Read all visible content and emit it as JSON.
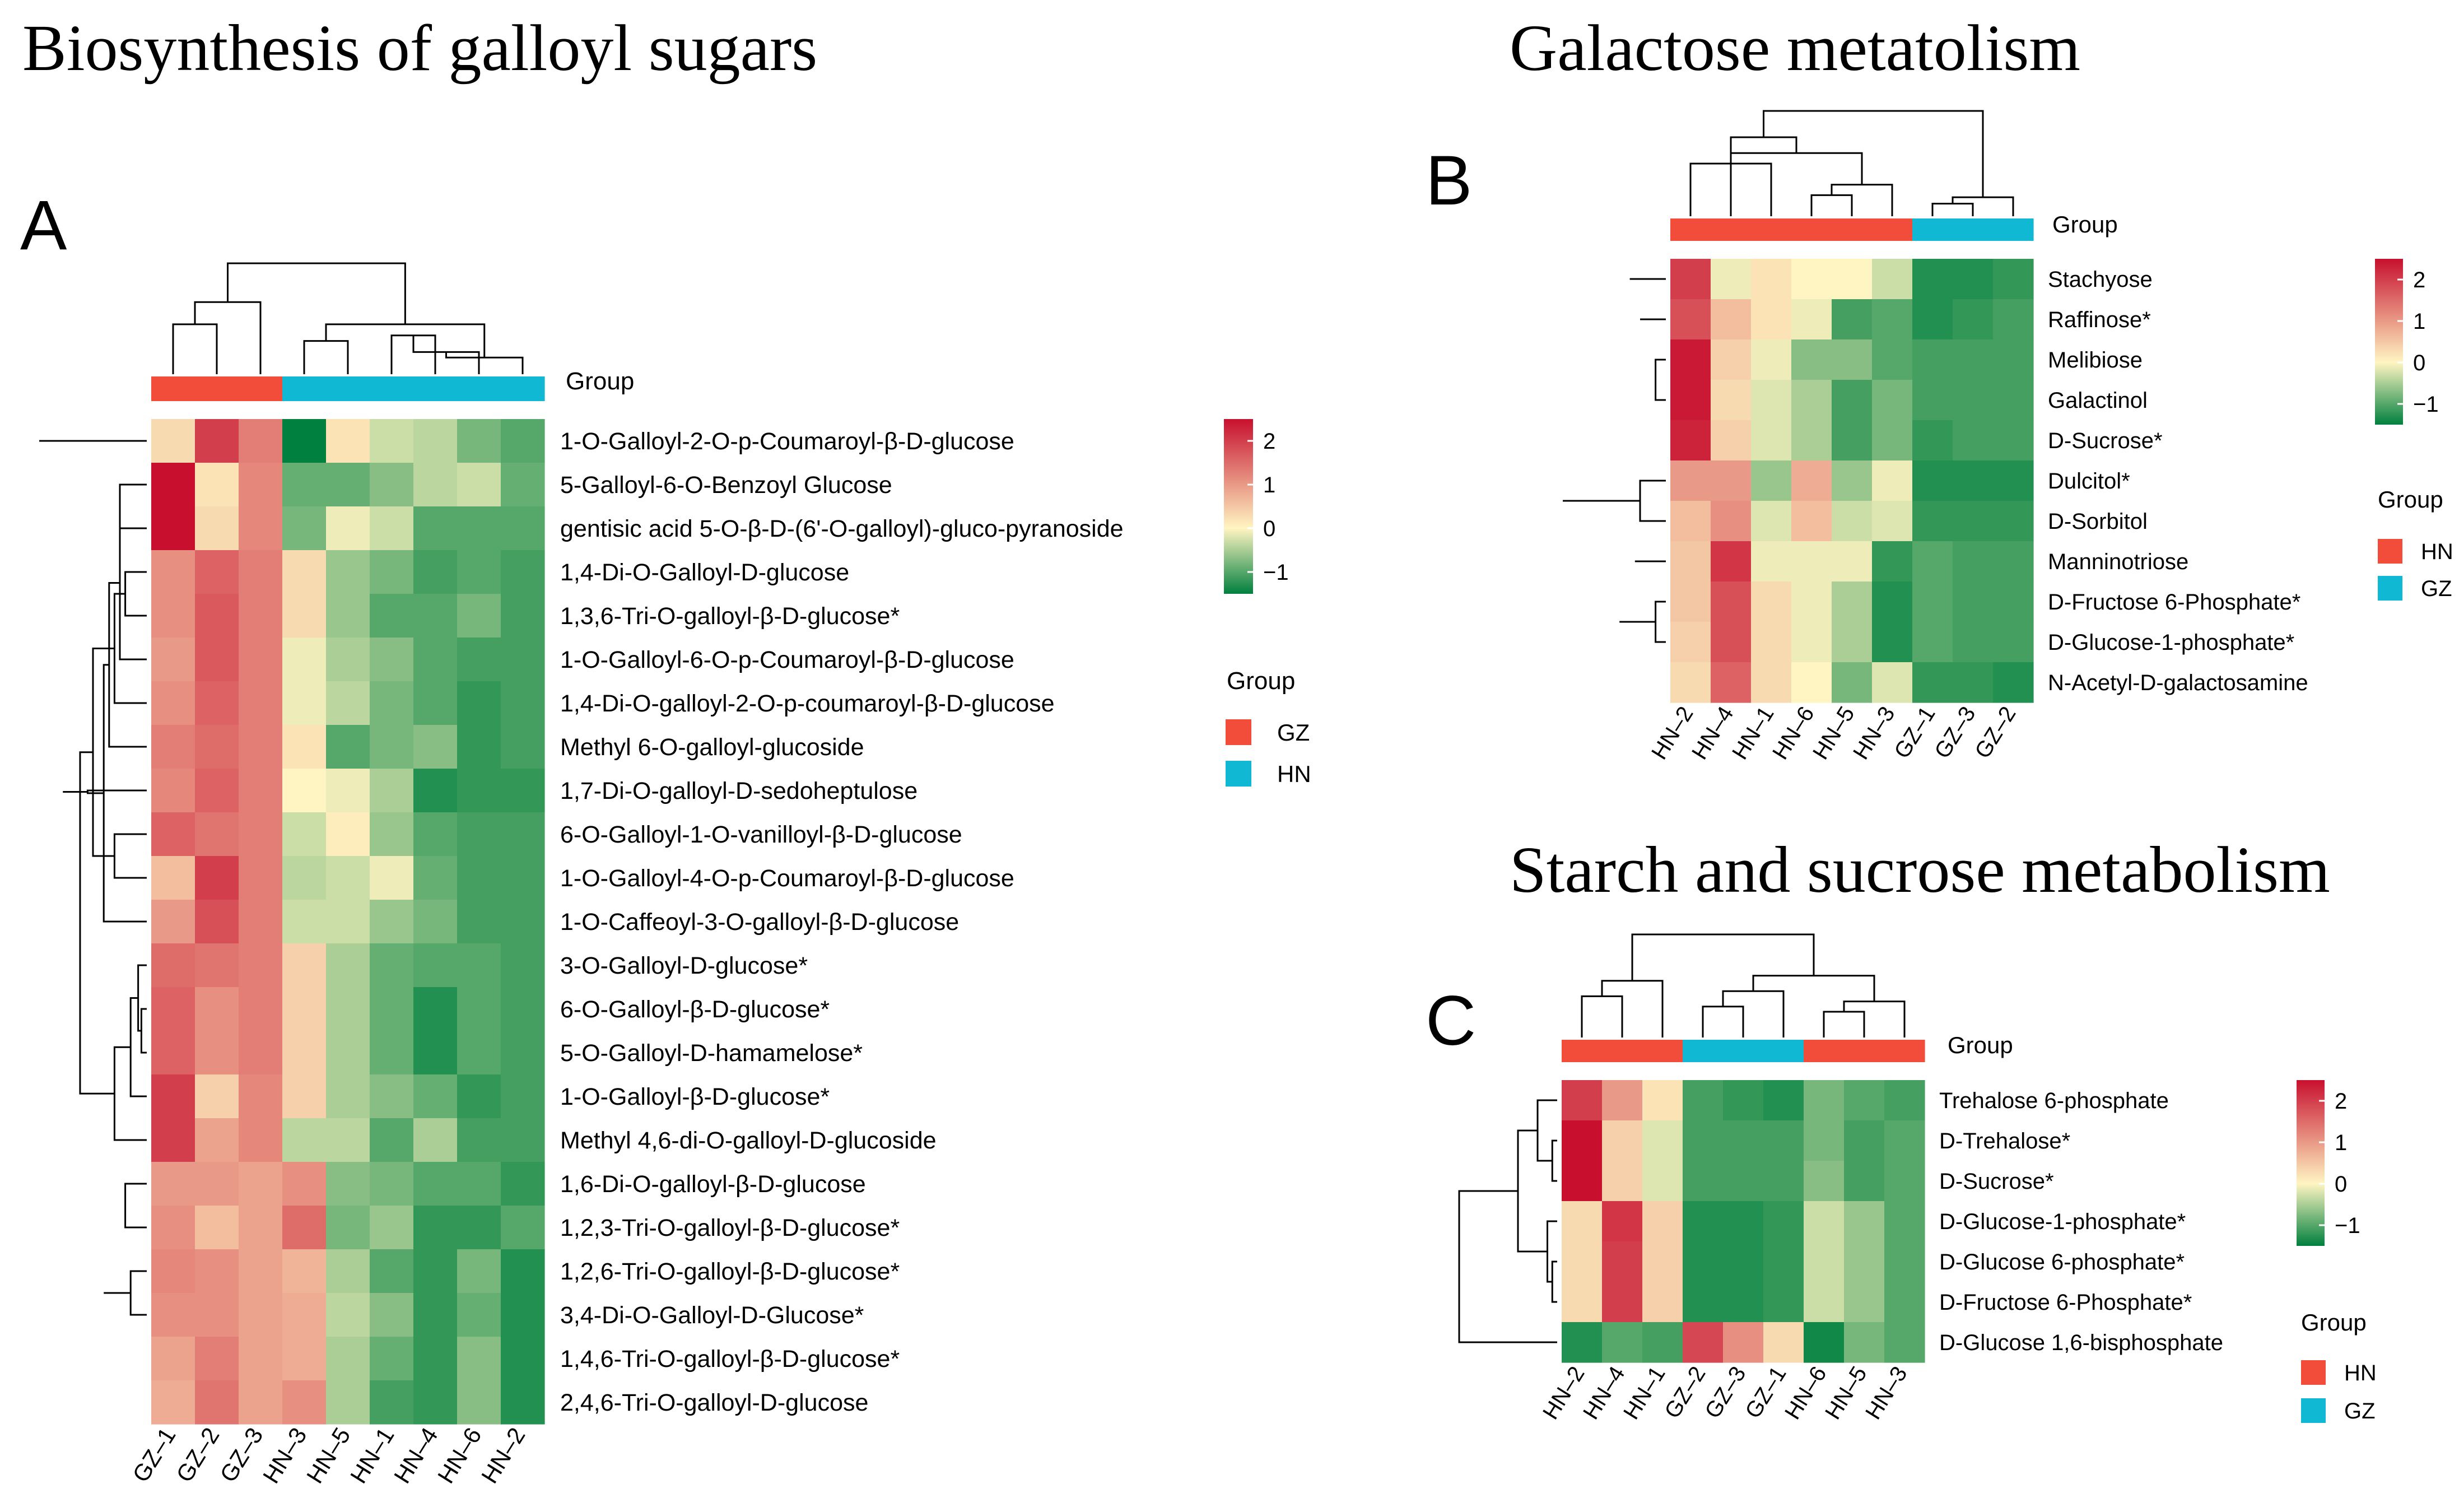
{
  "colors": {
    "scale_low": "#00803e",
    "scale_mid": "#fff5c2",
    "scale_high": "#c8102e",
    "group_red": "#f24d3a",
    "group_cyan": "#11b8d4",
    "dendro": "#000000"
  },
  "chart_data": [
    {
      "id": "A",
      "type": "heatmap",
      "panel_label": "A",
      "title": "Biosynthesis of galloyl sugars",
      "group_label": "Group",
      "columns": [
        "GZ–1",
        "GZ–2",
        "GZ–3",
        "HN–3",
        "HN–5",
        "HN–1",
        "HN–4",
        "HN–6",
        "HN–2"
      ],
      "column_groups": [
        "GZ",
        "GZ",
        "GZ",
        "HN",
        "HN",
        "HN",
        "HN",
        "HN",
        "HN"
      ],
      "rows": [
        "1-O-Galloyl-2-O-p-Coumaroyl-β-D-glucose",
        "5-Galloyl-6-O-Benzoyl Glucose",
        "gentisic acid 5-O-β-D-(6'-O-galloyl)-gluco-pyranoside",
        "1,4-Di-O-Galloyl-D-glucose",
        "1,3,6-Tri-O-galloyl-β-D-glucose*",
        "1-O-Galloyl-6-O-p-Coumaroyl-β-D-glucose",
        "1,4-Di-O-galloyl-2-O-p-coumaroyl-β-D-glucose",
        "Methyl 6-O-galloyl-glucoside",
        "1,7-Di-O-galloyl-D-sedoheptulose",
        "6-O-Galloyl-1-O-vanilloyl-β-D-glucose",
        "1-O-Galloyl-4-O-p-Coumaroyl-β-D-glucose",
        "1-O-Caffeoyl-3-O-galloyl-β-D-glucose",
        "3-O-Galloyl-D-glucose*",
        "6-O-Galloyl-β-D-glucose*",
        "5-O-Galloyl-D-hamamelose*",
        "1-O-Galloyl-β-D-glucose*",
        "Methyl 4,6-di-O-galloyl-D-glucoside",
        "1,6-Di-O-galloyl-β-D-glucose",
        "1,2,3-Tri-O-galloyl-β-D-glucose*",
        "1,2,6-Tri-O-galloyl-β-D-glucose*",
        "3,4-Di-O-Galloyl-D-Glucose*",
        "1,4,6-Tri-O-galloyl-β-D-glucose*",
        "2,4,6-Tri-O-galloyl-D-glucose"
      ],
      "values": [
        [
          0.3,
          2.0,
          1.3,
          -1.5,
          0.2,
          -0.3,
          -0.4,
          -0.8,
          -1.0
        ],
        [
          2.6,
          0.2,
          1.2,
          -0.9,
          -0.9,
          -0.7,
          -0.4,
          -0.3,
          -0.9
        ],
        [
          2.6,
          0.3,
          1.2,
          -0.8,
          -0.1,
          -0.3,
          -1.0,
          -1.0,
          -1.0
        ],
        [
          1.1,
          1.6,
          1.3,
          0.3,
          -0.6,
          -0.8,
          -1.1,
          -1.0,
          -1.1
        ],
        [
          1.1,
          1.7,
          1.3,
          0.3,
          -0.6,
          -1.0,
          -1.0,
          -0.8,
          -1.1
        ],
        [
          1.0,
          1.7,
          1.3,
          -0.1,
          -0.5,
          -0.7,
          -1.0,
          -1.1,
          -1.1
        ],
        [
          1.1,
          1.6,
          1.3,
          -0.1,
          -0.4,
          -0.8,
          -1.0,
          -1.2,
          -1.1
        ],
        [
          1.3,
          1.5,
          1.3,
          0.2,
          -1.0,
          -0.8,
          -0.7,
          -1.2,
          -1.1
        ],
        [
          1.2,
          1.6,
          1.3,
          0.0,
          -0.1,
          -0.5,
          -1.3,
          -1.2,
          -1.2
        ],
        [
          1.6,
          1.4,
          1.3,
          -0.3,
          0.1,
          -0.6,
          -1.0,
          -1.1,
          -1.1
        ],
        [
          0.6,
          2.0,
          1.3,
          -0.4,
          -0.3,
          -0.1,
          -0.9,
          -1.1,
          -1.1
        ],
        [
          1.0,
          1.8,
          1.3,
          -0.3,
          -0.3,
          -0.6,
          -0.8,
          -1.1,
          -1.1
        ],
        [
          1.5,
          1.4,
          1.3,
          0.4,
          -0.5,
          -0.9,
          -1.0,
          -1.0,
          -1.1
        ],
        [
          1.6,
          1.1,
          1.3,
          0.4,
          -0.5,
          -0.9,
          -1.3,
          -1.0,
          -1.1
        ],
        [
          1.6,
          1.1,
          1.3,
          0.4,
          -0.5,
          -0.9,
          -1.3,
          -1.0,
          -1.1
        ],
        [
          2.0,
          0.4,
          1.2,
          0.4,
          -0.5,
          -0.7,
          -0.9,
          -1.2,
          -1.1
        ],
        [
          2.0,
          0.9,
          1.2,
          -0.4,
          -0.4,
          -1.0,
          -0.5,
          -1.1,
          -1.1
        ],
        [
          1.0,
          1.0,
          0.9,
          1.1,
          -0.7,
          -0.8,
          -1.0,
          -1.0,
          -1.2
        ],
        [
          1.1,
          0.6,
          0.9,
          1.5,
          -0.8,
          -0.6,
          -1.2,
          -1.2,
          -1.0
        ],
        [
          1.2,
          1.1,
          0.9,
          0.7,
          -0.5,
          -1.0,
          -1.2,
          -0.8,
          -1.3
        ],
        [
          1.1,
          1.1,
          0.9,
          0.8,
          -0.4,
          -0.7,
          -1.2,
          -0.9,
          -1.3
        ],
        [
          0.9,
          1.3,
          0.9,
          0.8,
          -0.5,
          -0.9,
          -1.2,
          -0.7,
          -1.3
        ],
        [
          0.8,
          1.4,
          0.9,
          1.1,
          -0.5,
          -1.1,
          -1.2,
          -0.7,
          -1.3
        ]
      ],
      "legend": {
        "ticks": [
          "2",
          "1",
          "0",
          "−1"
        ],
        "tick_values": [
          2,
          1,
          0,
          -1
        ],
        "range": [
          -1.5,
          2.5
        ],
        "group_title": "Group",
        "groups": [
          {
            "label": "GZ",
            "color": "#f24d3a"
          },
          {
            "label": "HN",
            "color": "#11b8d4"
          }
        ]
      }
    },
    {
      "id": "B",
      "type": "heatmap",
      "panel_label": "B",
      "title": "Galactose metatolism",
      "group_label": "Group",
      "columns": [
        "HN–2",
        "HN–4",
        "HN–1",
        "HN–6",
        "HN–5",
        "HN–3",
        "GZ–1",
        "GZ–3",
        "GZ–2"
      ],
      "column_groups": [
        "HN",
        "HN",
        "HN",
        "HN",
        "HN",
        "HN",
        "GZ",
        "GZ",
        "GZ"
      ],
      "rows": [
        "Stachyose",
        "Raffinose*",
        "Melibiose",
        "Galactinol",
        "D-Sucrose*",
        "Dulcitol*",
        "D-Sorbitol",
        "Manninotriose",
        "D-Fructose 6-Phosphate*",
        "D-Glucose-1-phosphate*",
        "N-Acetyl-D-galactosamine"
      ],
      "values": [
        [
          2.0,
          -0.1,
          0.2,
          0.0,
          0.0,
          -0.3,
          -1.3,
          -1.3,
          -1.2
        ],
        [
          1.8,
          0.6,
          0.2,
          -0.1,
          -1.1,
          -1.0,
          -1.3,
          -1.2,
          -1.1
        ],
        [
          2.4,
          0.4,
          -0.1,
          -0.7,
          -0.7,
          -1.0,
          -1.1,
          -1.1,
          -1.1
        ],
        [
          2.4,
          0.3,
          -0.2,
          -0.5,
          -1.1,
          -0.8,
          -1.1,
          -1.1,
          -1.1
        ],
        [
          2.3,
          0.4,
          -0.2,
          -0.5,
          -1.1,
          -0.8,
          -1.2,
          -1.1,
          -1.1
        ],
        [
          1.0,
          1.0,
          -0.6,
          0.8,
          -0.6,
          -0.1,
          -1.3,
          -1.3,
          -1.3
        ],
        [
          0.6,
          1.1,
          -0.2,
          0.6,
          -0.3,
          -0.2,
          -1.2,
          -1.2,
          -1.2
        ],
        [
          0.5,
          2.1,
          -0.1,
          -0.1,
          -0.1,
          -1.2,
          -1.0,
          -1.1,
          -1.1
        ],
        [
          0.5,
          1.8,
          0.3,
          -0.1,
          -0.5,
          -1.3,
          -1.0,
          -1.1,
          -1.1
        ],
        [
          0.4,
          1.8,
          0.3,
          -0.1,
          -0.5,
          -1.3,
          -1.0,
          -1.1,
          -1.1
        ],
        [
          0.3,
          1.6,
          0.3,
          0.0,
          -0.8,
          -0.2,
          -1.2,
          -1.2,
          -1.3
        ]
      ],
      "legend": {
        "ticks": [
          "2",
          "1",
          "0",
          "−1"
        ],
        "tick_values": [
          2,
          1,
          0,
          -1
        ],
        "range": [
          -1.5,
          2.5
        ],
        "group_title": "Group",
        "groups": [
          {
            "label": "HN",
            "color": "#f24d3a"
          },
          {
            "label": "GZ",
            "color": "#11b8d4"
          }
        ]
      }
    },
    {
      "id": "C",
      "type": "heatmap",
      "panel_label": "C",
      "title": "Starch and sucrose metabolism",
      "group_label": "Group",
      "columns": [
        "HN–2",
        "HN–4",
        "HN–1",
        "GZ–2",
        "GZ–3",
        "GZ–1",
        "HN–6",
        "HN–5",
        "HN–3"
      ],
      "column_groups": [
        "HN",
        "HN",
        "HN",
        "GZ",
        "GZ",
        "GZ",
        "HN",
        "HN",
        "HN"
      ],
      "rows": [
        "Trehalose 6-phosphate",
        "D-Trehalose*",
        "D-Sucrose*",
        "D-Glucose-1-phosphate*",
        "D-Glucose 6-phosphate*",
        "D-Fructose 6-Phosphate*",
        "D-Glucose 1,6-bisphosphate"
      ],
      "values": [
        [
          2.0,
          1.0,
          0.2,
          -1.1,
          -1.2,
          -1.3,
          -0.8,
          -1.0,
          -1.1
        ],
        [
          2.5,
          0.4,
          -0.2,
          -1.1,
          -1.1,
          -1.1,
          -0.8,
          -1.1,
          -1.0
        ],
        [
          2.5,
          0.4,
          -0.2,
          -1.1,
          -1.1,
          -1.1,
          -0.7,
          -1.1,
          -1.0
        ],
        [
          0.3,
          2.1,
          0.4,
          -1.3,
          -1.3,
          -1.2,
          -0.3,
          -0.6,
          -1.0
        ],
        [
          0.3,
          2.0,
          0.4,
          -1.3,
          -1.3,
          -1.2,
          -0.3,
          -0.6,
          -1.0
        ],
        [
          0.3,
          2.0,
          0.4,
          -1.3,
          -1.3,
          -1.2,
          -0.3,
          -0.6,
          -1.0
        ],
        [
          -1.3,
          -1.0,
          -1.1,
          1.9,
          1.1,
          0.3,
          -1.4,
          -0.8,
          -1.0
        ]
      ],
      "legend": {
        "ticks": [
          "2",
          "1",
          "0",
          "−1"
        ],
        "tick_values": [
          2,
          1,
          0,
          -1
        ],
        "range": [
          -1.5,
          2.5
        ],
        "group_title": "Group",
        "groups": [
          {
            "label": "HN",
            "color": "#f24d3a"
          },
          {
            "label": "GZ",
            "color": "#11b8d4"
          }
        ]
      }
    }
  ]
}
